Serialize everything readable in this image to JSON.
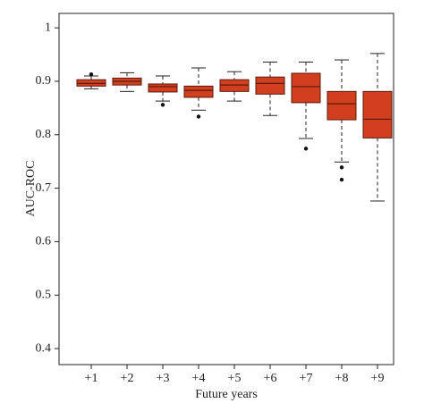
{
  "chart_data": {
    "type": "box",
    "x_label": "Future years",
    "y_label": "AUC-ROC",
    "categories": [
      "+1",
      "+2",
      "+3",
      "+4",
      "+5",
      "+6",
      "+7",
      "+8",
      "+9"
    ],
    "color": "#d23f1f",
    "edge_color": "#5a1a0c",
    "boxes": [
      {
        "whisker_low": 0.886,
        "q1": 0.891,
        "median": 0.896,
        "q3": 0.903,
        "whisker_high": 0.91,
        "outliers": [
          0.913
        ]
      },
      {
        "whisker_low": 0.881,
        "q1": 0.893,
        "median": 0.9,
        "q3": 0.906,
        "whisker_high": 0.916
      },
      {
        "whisker_low": 0.863,
        "q1": 0.88,
        "median": 0.89,
        "q3": 0.895,
        "whisker_high": 0.91,
        "outliers": [
          0.856
        ]
      },
      {
        "whisker_low": 0.846,
        "q1": 0.87,
        "median": 0.883,
        "q3": 0.891,
        "whisker_high": 0.925,
        "outliers": [
          0.834
        ]
      },
      {
        "whisker_low": 0.863,
        "q1": 0.881,
        "median": 0.893,
        "q3": 0.903,
        "whisker_high": 0.918
      },
      {
        "whisker_low": 0.836,
        "q1": 0.876,
        "median": 0.896,
        "q3": 0.908,
        "whisker_high": 0.936
      },
      {
        "whisker_low": 0.793,
        "q1": 0.86,
        "median": 0.89,
        "q3": 0.915,
        "whisker_high": 0.936,
        "outliers": [
          0.774
        ]
      },
      {
        "whisker_low": 0.749,
        "q1": 0.828,
        "median": 0.858,
        "q3": 0.881,
        "whisker_high": 0.94,
        "outliers": [
          0.739,
          0.716
        ]
      },
      {
        "whisker_low": 0.676,
        "q1": 0.794,
        "median": 0.829,
        "q3": 0.881,
        "whisker_high": 0.952
      }
    ],
    "ylim": [
      0.37,
      1.027
    ],
    "yticks": [
      0.4,
      0.5,
      0.6,
      0.7,
      0.8,
      0.9,
      1
    ]
  }
}
